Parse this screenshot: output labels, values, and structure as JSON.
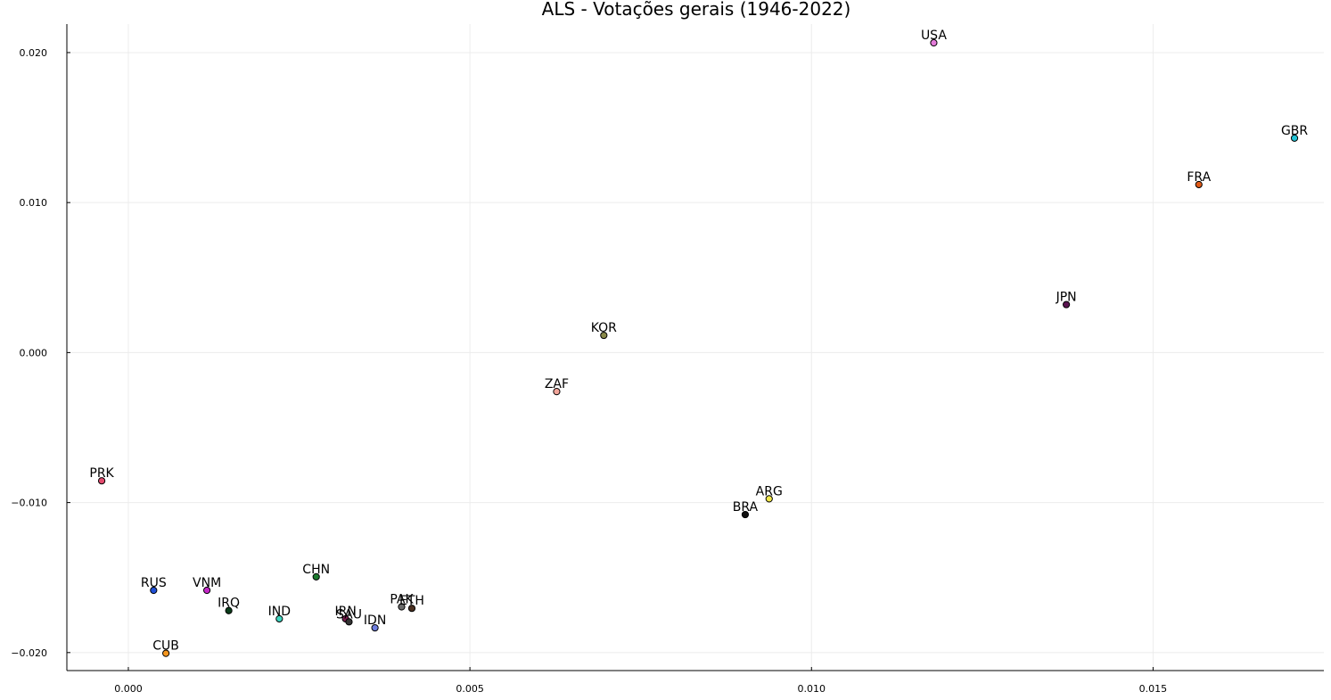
{
  "chart_data": {
    "type": "scatter",
    "title": "ALS - Votações gerais (1946-2022)",
    "xlim": [
      -0.0009,
      0.0175
    ],
    "ylim": [
      -0.0212,
      0.0219
    ],
    "grid": true,
    "x_ticks": [
      0.0,
      0.005,
      0.01,
      0.015
    ],
    "x_tick_labels": [
      "0.000",
      "0.005",
      "0.010",
      "0.015"
    ],
    "y_ticks": [
      -0.02,
      -0.01,
      0.0,
      0.01,
      0.02
    ],
    "y_tick_labels": [
      "−0.020",
      "−0.010",
      "0.000",
      "0.010",
      "0.020"
    ],
    "points": [
      {
        "label": "USA",
        "x": 0.01179,
        "y": 0.02065,
        "color": "#e37bd9"
      },
      {
        "label": "GBR",
        "x": 0.01707,
        "y": 0.0143,
        "color": "#22c4d6"
      },
      {
        "label": "FRA",
        "x": 0.01567,
        "y": 0.0112,
        "color": "#e05a17"
      },
      {
        "label": "JPN",
        "x": 0.01373,
        "y": 0.0032,
        "color": "#5a1450"
      },
      {
        "label": "KOR",
        "x": 0.00696,
        "y": 0.00115,
        "color": "#8a8a4a"
      },
      {
        "label": "ZAF",
        "x": 0.00627,
        "y": -0.0026,
        "color": "#f2a59a"
      },
      {
        "label": "PRK",
        "x": -0.00039,
        "y": -0.00855,
        "color": "#e34b6e"
      },
      {
        "label": "ARG",
        "x": 0.00938,
        "y": -0.00975,
        "color": "#f2e84a"
      },
      {
        "label": "BRA",
        "x": 0.00903,
        "y": -0.0108,
        "color": "#111111"
      },
      {
        "label": "CHN",
        "x": 0.00275,
        "y": -0.01495,
        "color": "#1c7a2e"
      },
      {
        "label": "RUS",
        "x": 0.00037,
        "y": -0.01585,
        "color": "#1f4fd6"
      },
      {
        "label": "VNM",
        "x": 0.00115,
        "y": -0.01585,
        "color": "#c428c7"
      },
      {
        "label": "IRQ",
        "x": 0.00147,
        "y": -0.0172,
        "color": "#0a3d1a"
      },
      {
        "label": "IND",
        "x": 0.00221,
        "y": -0.01775,
        "color": "#3ed6c0"
      },
      {
        "label": "IRN",
        "x": 0.00318,
        "y": -0.01775,
        "color": "#7a2050"
      },
      {
        "label": "SAU",
        "x": 0.00323,
        "y": -0.01795,
        "color": "#333333"
      },
      {
        "label": "IDN",
        "x": 0.00361,
        "y": -0.01835,
        "color": "#6f7fe0"
      },
      {
        "label": "PAK",
        "x": 0.004,
        "y": -0.01695,
        "color": "#6b6b6b"
      },
      {
        "label": "ETH",
        "x": 0.00415,
        "y": -0.01705,
        "color": "#4a3020"
      },
      {
        "label": "CUB",
        "x": 0.00055,
        "y": -0.02005,
        "color": "#f5961e"
      }
    ]
  }
}
